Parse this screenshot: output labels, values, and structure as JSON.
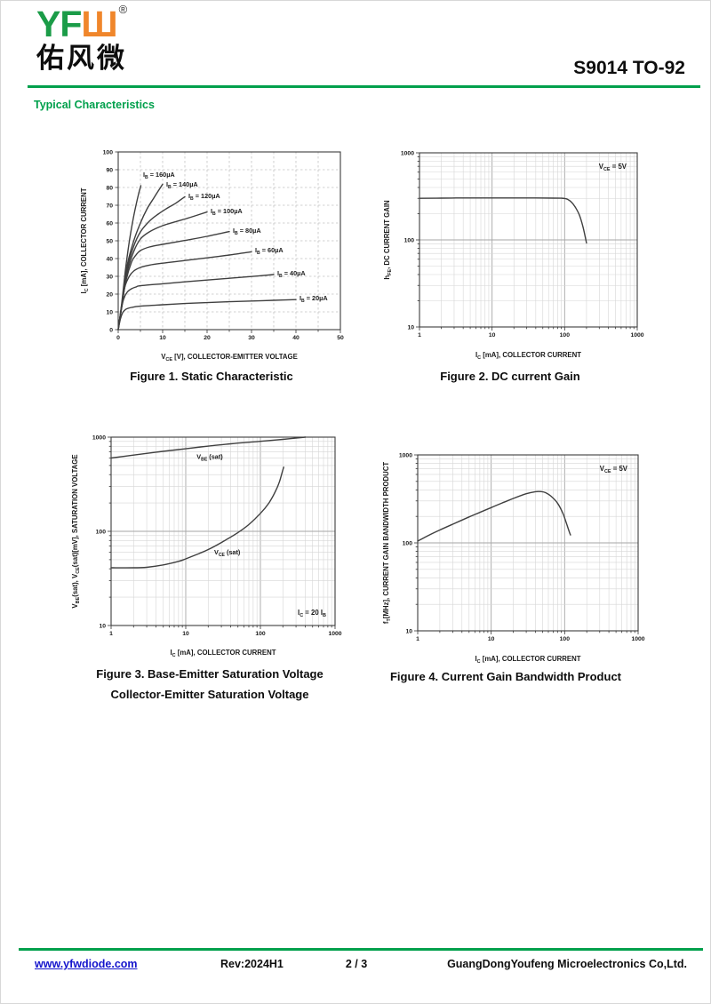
{
  "header": {
    "logo_green": "YF",
    "logo_orange": "Ш",
    "logo_reg": "®",
    "logo_chinese": "佑风微",
    "product_title": "S9014 TO-92",
    "section_title": "Typical Characteristics",
    "accent_green": "#00A04C",
    "logo_orange_color": "#F0862B",
    "logo_green_color": "#1B9C48"
  },
  "footer": {
    "website": "www.yfwdiode.com",
    "revision": "Rev:2024H1",
    "page_number": "2 / 3",
    "company": "GuangDongYoufeng Microelectronics Co,Ltd.",
    "link_color": "#1414CC"
  },
  "chart_data": [
    {
      "id": "figure-1",
      "type": "line",
      "scale": "linear",
      "caption": "Figure 1. Static Characteristic",
      "xlabel": "V_{CE} [V], COLLECTOR-EMITTER VOLTAGE",
      "ylabel": "I_{C} [mA], COLLECTOR CURRENT",
      "xlim": [
        0,
        50
      ],
      "ylim": [
        0,
        100
      ],
      "x_ticks": [
        0,
        10,
        20,
        30,
        40,
        50
      ],
      "y_ticks": [
        0,
        10,
        20,
        30,
        40,
        50,
        60,
        70,
        80,
        90,
        100
      ],
      "x_minor": 5,
      "y_grid_step": 10,
      "grid": "dashed",
      "series": [
        {
          "name": "I_{B} = 160µA",
          "label_at": [
            5.6,
            86
          ],
          "points": [
            [
              0,
              0
            ],
            [
              0.8,
              15
            ],
            [
              1.6,
              33
            ],
            [
              2.4,
              48
            ],
            [
              3.2,
              60
            ],
            [
              4,
              70
            ],
            [
              4.6,
              76.5
            ],
            [
              5.1,
              81
            ]
          ]
        },
        {
          "name": "I_{B} = 140µA",
          "label_at": [
            10.8,
            80.5
          ],
          "points": [
            [
              0,
              0
            ],
            [
              1,
              17
            ],
            [
              2,
              36
            ],
            [
              3.5,
              50
            ],
            [
              5,
              60
            ],
            [
              6.5,
              68
            ],
            [
              8,
              74
            ],
            [
              9,
              78
            ],
            [
              10,
              81.8
            ]
          ]
        },
        {
          "name": "I_{B} = 120µA",
          "label_at": [
            15.8,
            74
          ],
          "points": [
            [
              0,
              0
            ],
            [
              1,
              16
            ],
            [
              2,
              34
            ],
            [
              3.5,
              47
            ],
            [
              5,
              55
            ],
            [
              7,
              61
            ],
            [
              9,
              65
            ],
            [
              11,
              68.3
            ],
            [
              13,
              71.2
            ],
            [
              15,
              74.8
            ]
          ]
        },
        {
          "name": "I_{B} = 100µA",
          "label_at": [
            20.8,
            65.5
          ],
          "points": [
            [
              0,
              0
            ],
            [
              0.9,
              15
            ],
            [
              2,
              32
            ],
            [
              3.5,
              44
            ],
            [
              5,
              51
            ],
            [
              7,
              55
            ],
            [
              10,
              58.5
            ],
            [
              13,
              60.8
            ],
            [
              16,
              63
            ],
            [
              20,
              66.2
            ]
          ]
        },
        {
          "name": "I_{B} = 80µA",
          "label_at": [
            25.8,
            54.5
          ],
          "points": [
            [
              0,
              0
            ],
            [
              0.8,
              14
            ],
            [
              1.8,
              28
            ],
            [
              3,
              38
            ],
            [
              4,
              42
            ],
            [
              5,
              44.5
            ],
            [
              7,
              46.5
            ],
            [
              10,
              48
            ],
            [
              15,
              50.2
            ],
            [
              20,
              52.5
            ],
            [
              25,
              55.2
            ]
          ]
        },
        {
          "name": "I_{B} = 60µA",
          "label_at": [
            30.8,
            43.5
          ],
          "points": [
            [
              0,
              0
            ],
            [
              0.7,
              12
            ],
            [
              1.5,
              24
            ],
            [
              2.5,
              30
            ],
            [
              3.5,
              33
            ],
            [
              5,
              35
            ],
            [
              7,
              36.3
            ],
            [
              10,
              37.4
            ],
            [
              15,
              38.9
            ],
            [
              20,
              40.4
            ],
            [
              25,
              42
            ],
            [
              30,
              43.8
            ]
          ]
        },
        {
          "name": "I_{B} = 40µA",
          "label_at": [
            35.8,
            30.5
          ],
          "points": [
            [
              0,
              0
            ],
            [
              0.6,
              10
            ],
            [
              1.2,
              17
            ],
            [
              2,
              21
            ],
            [
              3,
              23
            ],
            [
              4,
              24
            ],
            [
              5,
              24.7
            ],
            [
              10,
              25.8
            ],
            [
              15,
              26.9
            ],
            [
              20,
              27.9
            ],
            [
              25,
              28.9
            ],
            [
              30,
              29.9
            ],
            [
              35,
              31
            ]
          ]
        },
        {
          "name": "I_{B} = 20µA",
          "label_at": [
            40.8,
            16.5
          ],
          "points": [
            [
              0,
              0
            ],
            [
              0.5,
              6
            ],
            [
              1,
              9.5
            ],
            [
              1.5,
              11
            ],
            [
              2,
              11.8
            ],
            [
              3,
              12.5
            ],
            [
              5,
              13.2
            ],
            [
              10,
              14
            ],
            [
              15,
              14.7
            ],
            [
              20,
              15.2
            ],
            [
              25,
              15.7
            ],
            [
              30,
              16.1
            ],
            [
              35,
              16.5
            ],
            [
              40,
              16.9
            ]
          ]
        }
      ]
    },
    {
      "id": "figure-2",
      "type": "line",
      "scale": "log",
      "caption": "Figure 2. DC current Gain",
      "xlabel": "I_{C} [mA], COLLECTOR CURRENT",
      "ylabel": "h_{FE}, DC CURRENT GAIN",
      "xlim": [
        1,
        1000
      ],
      "ylim": [
        10,
        1000
      ],
      "x_ticks": [
        1,
        10,
        100,
        1000
      ],
      "y_ticks": [
        10,
        100,
        1000
      ],
      "annotation": {
        "text": "V_{CE} = 5V",
        "corner": "tr"
      },
      "series": [
        {
          "name": "h_{FE}",
          "points": [
            [
              1,
              300
            ],
            [
              2,
              302
            ],
            [
              5,
              303
            ],
            [
              10,
              303
            ],
            [
              20,
              303
            ],
            [
              40,
              303
            ],
            [
              70,
              302
            ],
            [
              90,
              301
            ],
            [
              100,
              299
            ],
            [
              110,
              292
            ],
            [
              125,
              270
            ],
            [
              140,
              238
            ],
            [
              160,
              192
            ],
            [
              180,
              138
            ],
            [
              200,
              92
            ]
          ]
        }
      ]
    },
    {
      "id": "figure-3",
      "type": "line",
      "scale": "log",
      "caption_line1": "Figure 3. Base-Emitter Saturation Voltage",
      "caption_line2": "Collector-Emitter Saturation Voltage",
      "xlabel": "I_{C} [mA], COLLECTOR CURRENT",
      "ylabel": "V_{BE}(sat), V_{CE}(sat)[mV], SATURATION VOLTAGE",
      "xlim": [
        1,
        1000
      ],
      "ylim": [
        10,
        1000
      ],
      "x_ticks": [
        1,
        10,
        100,
        1000
      ],
      "y_ticks": [
        10,
        100,
        1000
      ],
      "annotation": {
        "text": "I_{C} = 20 I_{B}",
        "corner": "br"
      },
      "series": [
        {
          "name": "V_{BE} (sat)",
          "label_at": [
            14,
            590
          ],
          "points": [
            [
              1,
              600
            ],
            [
              2,
              645
            ],
            [
              4,
              692
            ],
            [
              8,
              738
            ],
            [
              16,
              788
            ],
            [
              40,
              850
            ],
            [
              100,
              902
            ],
            [
              200,
              948
            ],
            [
              400,
              1000
            ]
          ]
        },
        {
          "name": "V_{CE} (sat)",
          "label_at": [
            24,
            57
          ],
          "points": [
            [
              1,
              41
            ],
            [
              2,
              41
            ],
            [
              3,
              41.5
            ],
            [
              5,
              44
            ],
            [
              8,
              48
            ],
            [
              10,
              51
            ],
            [
              15,
              58
            ],
            [
              20,
              64
            ],
            [
              30,
              76
            ],
            [
              50,
              97
            ],
            [
              70,
              118
            ],
            [
              100,
              155
            ],
            [
              130,
              200
            ],
            [
              160,
              268
            ],
            [
              180,
              335
            ],
            [
              195,
              420
            ],
            [
              205,
              480
            ]
          ]
        }
      ]
    },
    {
      "id": "figure-4",
      "type": "line",
      "scale": "log",
      "caption": "Figure 4. Current Gain Bandwidth Product",
      "xlabel": "I_{C} [mA], COLLECTOR CURRENT",
      "ylabel": "f_{T}[MHz], CURRENT GAIN BANDWIDTH PRODUCT",
      "xlim": [
        1,
        1000
      ],
      "ylim": [
        10,
        1000
      ],
      "x_ticks": [
        1,
        10,
        100,
        1000
      ],
      "y_ticks": [
        10,
        100,
        1000
      ],
      "annotation": {
        "text": "V_{CE} = 5V",
        "corner": "tr"
      },
      "series": [
        {
          "name": "f_{T}",
          "points": [
            [
              1,
              105
            ],
            [
              1.5,
              125
            ],
            [
              2,
              140
            ],
            [
              3,
              163
            ],
            [
              5,
              197
            ],
            [
              7,
              222
            ],
            [
              10,
              252
            ],
            [
              15,
              290
            ],
            [
              20,
              320
            ],
            [
              30,
              362
            ],
            [
              40,
              382
            ],
            [
              48,
              383
            ],
            [
              55,
              372
            ],
            [
              65,
              340
            ],
            [
              80,
              283
            ],
            [
              95,
              215
            ],
            [
              105,
              170
            ],
            [
              115,
              135
            ],
            [
              120,
              123
            ]
          ]
        }
      ]
    }
  ]
}
